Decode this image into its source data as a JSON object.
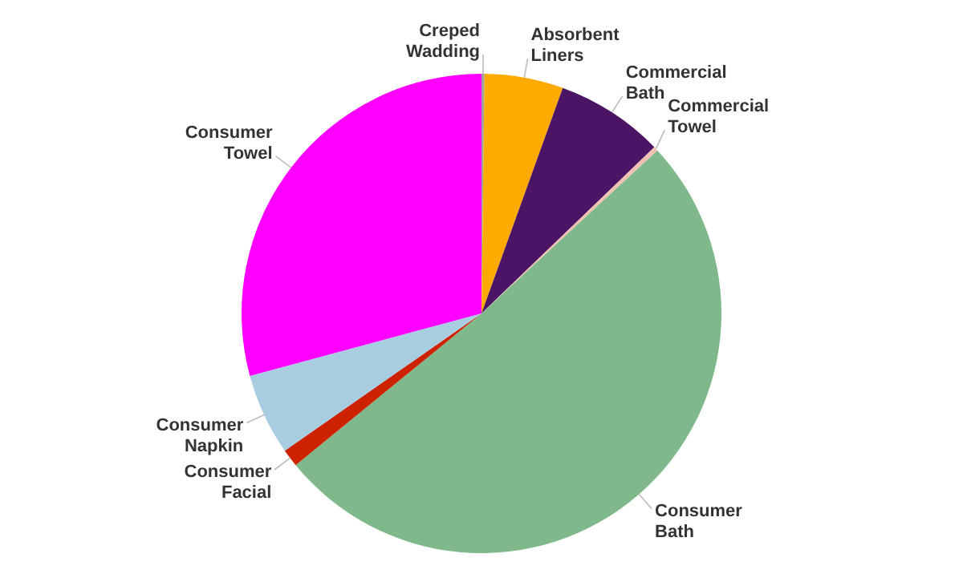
{
  "chart_data": {
    "type": "pie",
    "categories": [
      "Creped Wadding",
      "Absorbent Liners",
      "Commercial Bath",
      "Commercial Towel",
      "Consumer Bath",
      "Consumer Facial",
      "Consumer Napkin",
      "Consumer Towel"
    ],
    "values": [
      0.2,
      5.3,
      7.3,
      0.3,
      51,
      1.2,
      5.5,
      29.2
    ],
    "colors": [
      "#a0a0a0",
      "#ffaa00",
      "#4b1464",
      "#f0c0b0",
      "#7fb88a",
      "#cc2200",
      "#a8cce0",
      "#ff00ff"
    ],
    "legend": false
  }
}
